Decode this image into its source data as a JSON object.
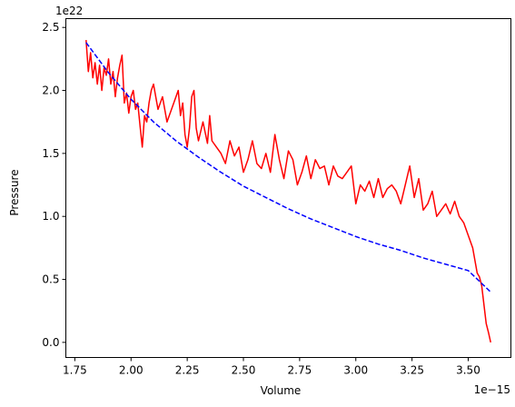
{
  "chart_data": {
    "type": "line",
    "title": "",
    "xlabel": "Volume",
    "ylabel": "Pressure",
    "x_offset_label": "1e−15",
    "y_offset_label": "1e22",
    "xlim": [
      1.71,
      3.69
    ],
    "ylim": [
      -0.12,
      2.57
    ],
    "x_ticks": [
      1.75,
      2.0,
      2.25,
      2.5,
      2.75,
      3.0,
      3.25,
      3.5
    ],
    "x_tick_labels": [
      "1.75",
      "2.00",
      "2.25",
      "2.50",
      "2.75",
      "3.00",
      "3.25",
      "3.50"
    ],
    "y_ticks": [
      0.0,
      0.5,
      1.0,
      1.5,
      2.0,
      2.5
    ],
    "y_tick_labels": [
      "0.0",
      "0.5",
      "1.0",
      "1.5",
      "2.0",
      "2.5"
    ],
    "grid": false,
    "series": [
      {
        "style": "solid",
        "color": "#ff0000",
        "x": [
          1.8,
          1.81,
          1.82,
          1.83,
          1.84,
          1.85,
          1.86,
          1.87,
          1.88,
          1.89,
          1.9,
          1.91,
          1.92,
          1.93,
          1.94,
          1.95,
          1.96,
          1.97,
          1.98,
          1.99,
          2.0,
          2.01,
          2.02,
          2.03,
          2.04,
          2.05,
          2.06,
          2.07,
          2.08,
          2.09,
          2.1,
          2.12,
          2.14,
          2.16,
          2.18,
          2.2,
          2.21,
          2.22,
          2.23,
          2.24,
          2.25,
          2.26,
          2.27,
          2.28,
          2.29,
          2.3,
          2.32,
          2.34,
          2.35,
          2.36,
          2.38,
          2.4,
          2.42,
          2.44,
          2.46,
          2.48,
          2.5,
          2.52,
          2.54,
          2.56,
          2.58,
          2.6,
          2.62,
          2.64,
          2.66,
          2.68,
          2.7,
          2.72,
          2.74,
          2.76,
          2.78,
          2.8,
          2.82,
          2.84,
          2.86,
          2.88,
          2.9,
          2.92,
          2.94,
          2.96,
          2.98,
          3.0,
          3.02,
          3.04,
          3.06,
          3.08,
          3.1,
          3.12,
          3.14,
          3.16,
          3.18,
          3.2,
          3.22,
          3.24,
          3.26,
          3.28,
          3.3,
          3.32,
          3.34,
          3.36,
          3.38,
          3.4,
          3.42,
          3.44,
          3.46,
          3.48,
          3.5,
          3.52,
          3.53,
          3.54,
          3.55,
          3.56,
          3.57,
          3.58,
          3.59,
          3.6
        ],
        "y": [
          2.4,
          2.15,
          2.3,
          2.1,
          2.22,
          2.05,
          2.2,
          2.0,
          2.18,
          2.12,
          2.25,
          2.05,
          2.15,
          1.95,
          2.1,
          2.2,
          2.28,
          1.9,
          1.98,
          1.82,
          1.95,
          2.0,
          1.85,
          1.9,
          1.72,
          1.55,
          1.8,
          1.75,
          1.9,
          2.0,
          2.05,
          1.85,
          1.95,
          1.75,
          1.85,
          1.95,
          2.0,
          1.8,
          1.9,
          1.65,
          1.55,
          1.7,
          1.95,
          2.0,
          1.7,
          1.6,
          1.75,
          1.58,
          1.8,
          1.6,
          1.55,
          1.5,
          1.42,
          1.6,
          1.48,
          1.55,
          1.35,
          1.45,
          1.6,
          1.42,
          1.38,
          1.5,
          1.35,
          1.65,
          1.45,
          1.3,
          1.52,
          1.45,
          1.25,
          1.35,
          1.48,
          1.3,
          1.45,
          1.38,
          1.4,
          1.25,
          1.4,
          1.32,
          1.3,
          1.35,
          1.4,
          1.1,
          1.25,
          1.2,
          1.28,
          1.15,
          1.3,
          1.15,
          1.22,
          1.25,
          1.2,
          1.1,
          1.25,
          1.4,
          1.15,
          1.3,
          1.05,
          1.1,
          1.2,
          1.0,
          1.05,
          1.1,
          1.02,
          1.12,
          1.0,
          0.95,
          0.85,
          0.75,
          0.65,
          0.55,
          0.52,
          0.45,
          0.3,
          0.15,
          0.08,
          0.0
        ]
      },
      {
        "style": "dashed",
        "color": "#0000ff",
        "x": [
          1.8,
          1.9,
          2.0,
          2.1,
          2.2,
          2.3,
          2.4,
          2.5,
          2.6,
          2.7,
          2.8,
          2.9,
          3.0,
          3.1,
          3.2,
          3.3,
          3.4,
          3.5,
          3.6
        ],
        "y": [
          2.38,
          2.14,
          1.93,
          1.75,
          1.6,
          1.47,
          1.35,
          1.24,
          1.15,
          1.06,
          0.98,
          0.91,
          0.84,
          0.78,
          0.73,
          0.67,
          0.62,
          0.57,
          0.4
        ]
      }
    ]
  }
}
